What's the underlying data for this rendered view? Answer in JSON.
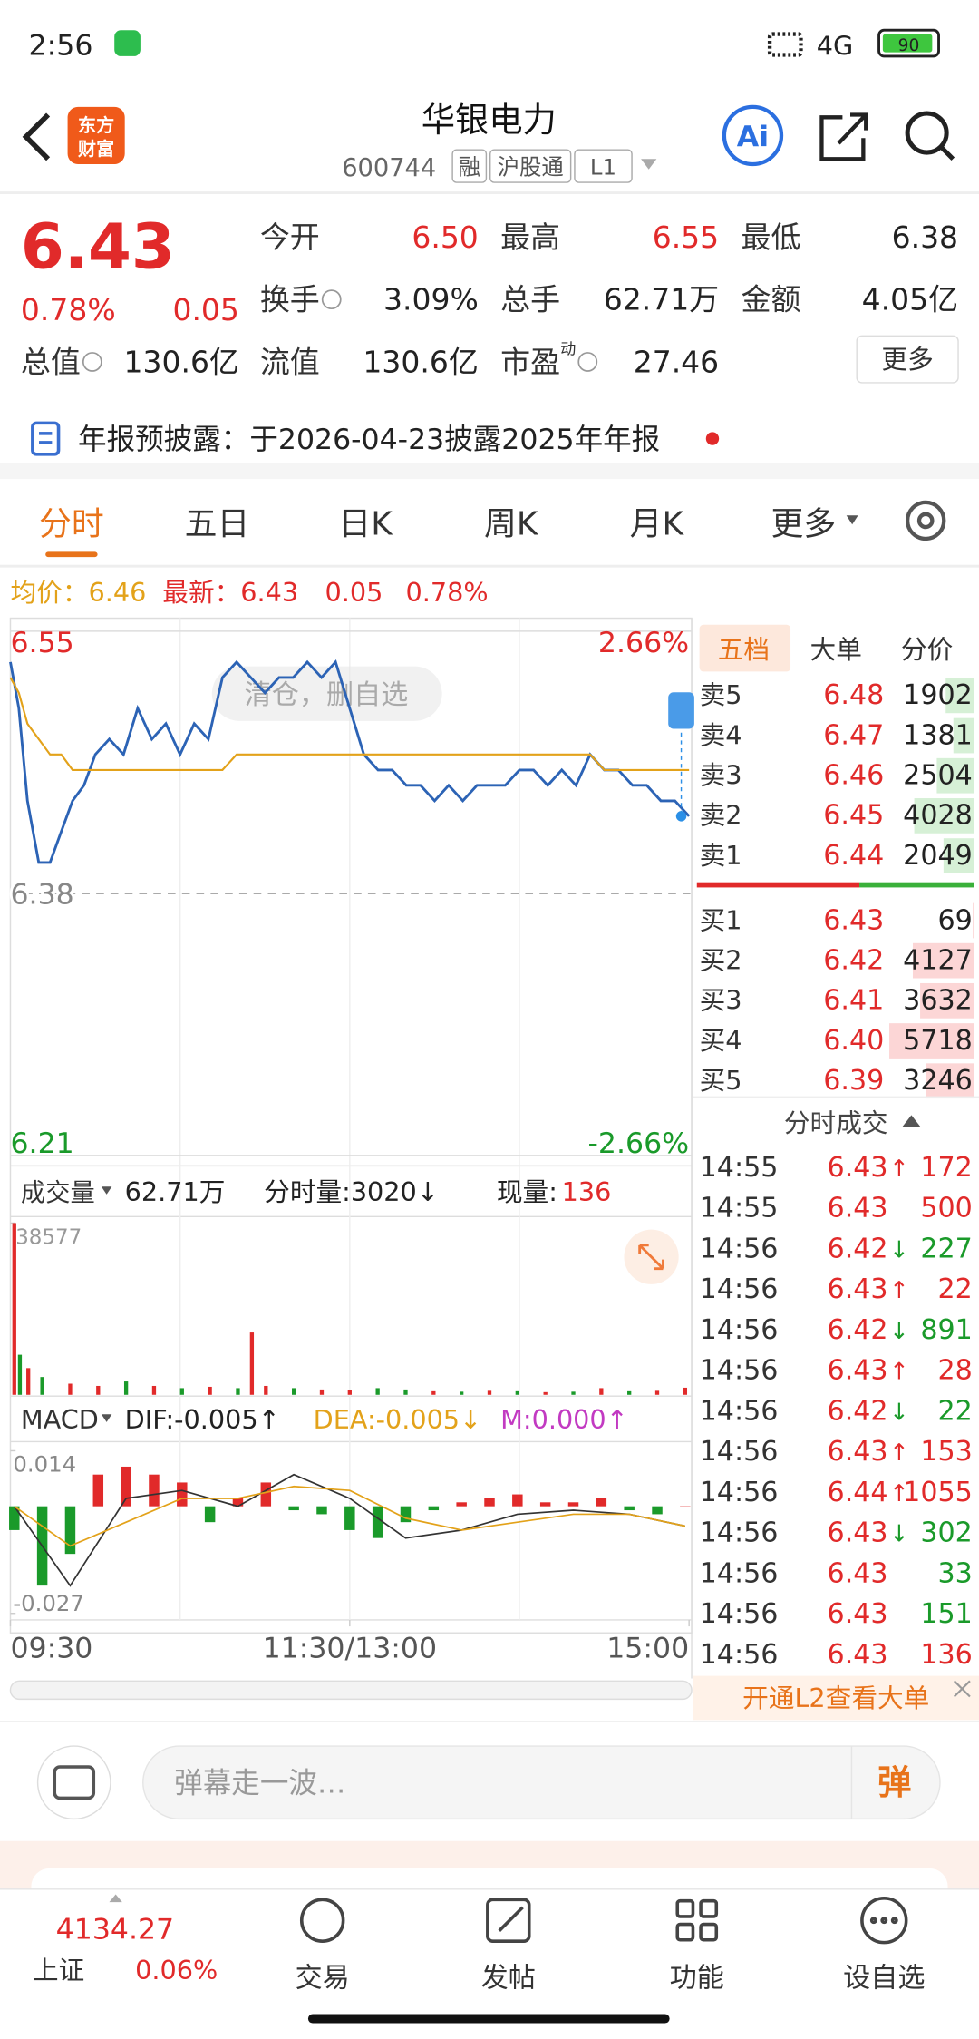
{
  "status_bar": {
    "time": "2:56",
    "network": "4G",
    "battery": "90"
  },
  "header": {
    "logo": [
      "东方",
      "财富"
    ],
    "title": "华银电力",
    "code": "600744",
    "tags": [
      "融",
      "沪股通",
      "L1"
    ]
  },
  "quote": {
    "price": "6.43",
    "change_pct": "0.78%",
    "change": "0.05",
    "fields": [
      {
        "label": "今开",
        "value": "6.50",
        "color": "#e12a2a"
      },
      {
        "label": "最高",
        "value": "6.55",
        "color": "#e12a2a"
      },
      {
        "label": "最低",
        "value": "6.38",
        "color": "#222222"
      },
      {
        "label": "换手",
        "value": "3.09%",
        "info": true
      },
      {
        "label": "总手",
        "value": "62.71万"
      },
      {
        "label": "金额",
        "value": "4.05亿"
      },
      {
        "label": "总值",
        "value": "130.6亿",
        "info": true
      },
      {
        "label": "流值",
        "value": "130.6亿"
      },
      {
        "label": "市盈",
        "sup": "动",
        "value": "27.46",
        "info": true
      }
    ],
    "more": "更多"
  },
  "notice": "年报预披露：于2026-04-23披露2025年年报",
  "tabs": {
    "items": [
      "分时",
      "五日",
      "日K",
      "周K",
      "月K",
      "更多"
    ],
    "active": 0
  },
  "summary": {
    "avg": "均价：6.46",
    "latest": "最新：6.43",
    "change": "0.05",
    "change_pct": "0.78%"
  },
  "watermark": "清仓，删自选",
  "volume_header": {
    "label": "成交量",
    "total": "62.71万",
    "minute": "分时量:3020↓",
    "current_label": "现量:",
    "current": "136"
  },
  "macd_header": {
    "label": "MACD",
    "dif": "DIF:-0.005↑",
    "dea": "DEA:-0.005↓",
    "m": "M:0.000↑"
  },
  "chart_data": [
    {
      "type": "line",
      "xlim": [
        0,
        240
      ],
      "ylim": [
        6.21,
        6.55
      ],
      "yticks": [
        6.21,
        6.38,
        6.55
      ],
      "y2lim": [
        -2.66,
        2.66
      ],
      "y2ticks": [
        {
          "value": -2.66,
          "label": "-2.66%"
        },
        {
          "value": 2.66,
          "label": "2.66%"
        }
      ],
      "xticks": [
        {
          "value": 0,
          "label": "09:30"
        },
        {
          "value": 120,
          "label": "11:30/13:00"
        },
        {
          "value": 240,
          "label": "15:00"
        }
      ],
      "x": [
        0,
        3,
        6,
        10,
        14,
        18,
        22,
        26,
        30,
        35,
        40,
        45,
        50,
        55,
        60,
        65,
        70,
        75,
        80,
        85,
        90,
        95,
        100,
        105,
        110,
        115,
        120,
        125,
        130,
        135,
        140,
        145,
        150,
        155,
        160,
        165,
        170,
        175,
        180,
        185,
        190,
        195,
        200,
        205,
        210,
        215,
        220,
        225,
        230,
        235,
        240
      ],
      "series": [
        {
          "color": "#2c63b5",
          "values": [
            6.53,
            6.5,
            6.44,
            6.4,
            6.4,
            6.42,
            6.44,
            6.45,
            6.47,
            6.48,
            6.47,
            6.5,
            6.48,
            6.49,
            6.47,
            6.49,
            6.48,
            6.52,
            6.53,
            6.52,
            6.51,
            6.52,
            6.52,
            6.53,
            6.52,
            6.53,
            6.5,
            6.47,
            6.46,
            6.46,
            6.45,
            6.45,
            6.44,
            6.45,
            6.44,
            6.45,
            6.45,
            6.45,
            6.46,
            6.46,
            6.45,
            6.46,
            6.45,
            6.47,
            6.46,
            6.46,
            6.45,
            6.45,
            6.44,
            6.44,
            6.43
          ]
        },
        {
          "color": "#e3a21a",
          "values": [
            6.52,
            6.51,
            6.49,
            6.48,
            6.47,
            6.47,
            6.46,
            6.46,
            6.46,
            6.46,
            6.46,
            6.46,
            6.46,
            6.46,
            6.46,
            6.46,
            6.46,
            6.46,
            6.47,
            6.47,
            6.47,
            6.47,
            6.47,
            6.47,
            6.47,
            6.47,
            6.47,
            6.47,
            6.47,
            6.47,
            6.47,
            6.47,
            6.47,
            6.47,
            6.47,
            6.47,
            6.47,
            6.47,
            6.47,
            6.47,
            6.47,
            6.47,
            6.47,
            6.47,
            6.46,
            6.46,
            6.46,
            6.46,
            6.46,
            6.46,
            6.46
          ]
        }
      ]
    },
    {
      "type": "bar",
      "xlim": [
        0,
        240
      ],
      "ylim": [
        0,
        38577
      ],
      "yticks": [
        38577
      ],
      "x": [
        0,
        2,
        5,
        10,
        20,
        30,
        40,
        50,
        60,
        70,
        80,
        85,
        90,
        100,
        110,
        120,
        130,
        140,
        150,
        160,
        170,
        180,
        190,
        200,
        210,
        220,
        230,
        240
      ],
      "values": [
        38577,
        9000,
        6000,
        4000,
        2500,
        2000,
        3000,
        2000,
        1500,
        1800,
        1500,
        14000,
        2000,
        1500,
        1200,
        1000,
        1500,
        1200,
        800,
        700,
        900,
        800,
        600,
        700,
        1500,
        800,
        900,
        1600
      ],
      "up": [
        true,
        false,
        true,
        false,
        true,
        true,
        false,
        true,
        false,
        true,
        false,
        true,
        true,
        false,
        true,
        true,
        false,
        false,
        true,
        false,
        true,
        false,
        true,
        false,
        true,
        false,
        true,
        true
      ]
    },
    {
      "type": "bar",
      "xlim": [
        0,
        240
      ],
      "ylim": [
        -0.027,
        0.014
      ],
      "yticks": [
        -0.027,
        0.014
      ],
      "x": [
        0,
        10,
        20,
        30,
        40,
        50,
        60,
        70,
        80,
        90,
        100,
        110,
        120,
        130,
        140,
        150,
        160,
        170,
        180,
        190,
        200,
        210,
        220,
        230,
        240
      ],
      "values": [
        -0.006,
        -0.02,
        -0.012,
        0.008,
        0.01,
        0.008,
        0.006,
        -0.004,
        0.002,
        0.006,
        -0.001,
        -0.002,
        -0.006,
        -0.008,
        -0.004,
        -0.001,
        0.001,
        0.002,
        0.003,
        0.001,
        0.001,
        0.002,
        -0.001,
        -0.002,
        0.0
      ],
      "lines": {
        "x": [
          0,
          20,
          40,
          60,
          80,
          100,
          120,
          140,
          160,
          180,
          200,
          220,
          240
        ],
        "series": [
          {
            "color": "#333333",
            "values": [
              0,
              -0.02,
              0.002,
              0.004,
              0,
              0.008,
              0.002,
              -0.008,
              -0.006,
              -0.002,
              -0.001,
              -0.002,
              -0.005
            ]
          },
          {
            "color": "#e3a21a",
            "values": [
              0,
              -0.01,
              -0.004,
              0.002,
              0.002,
              0.005,
              0.004,
              -0.003,
              -0.006,
              -0.004,
              -0.002,
              -0.002,
              -0.005
            ]
          }
        ]
      }
    }
  ],
  "order_book": {
    "tabs": [
      "五档",
      "大单",
      "分价"
    ],
    "sell": [
      {
        "label": "卖5",
        "price": "6.48",
        "volume": 1902
      },
      {
        "label": "卖4",
        "price": "6.47",
        "volume": 1381
      },
      {
        "label": "卖3",
        "price": "6.46",
        "volume": 2504
      },
      {
        "label": "卖2",
        "price": "6.45",
        "volume": 4028
      },
      {
        "label": "卖1",
        "price": "6.44",
        "volume": 2049
      }
    ],
    "buy": [
      {
        "label": "买1",
        "price": "6.43",
        "volume": 69
      },
      {
        "label": "买2",
        "price": "6.42",
        "volume": 4127
      },
      {
        "label": "买3",
        "price": "6.41",
        "volume": 3632
      },
      {
        "label": "买4",
        "price": "6.40",
        "volume": 5718
      },
      {
        "label": "买5",
        "price": "6.39",
        "volume": 3246
      }
    ]
  },
  "trades": {
    "title": "分时成交",
    "rows": [
      {
        "time": "14:55",
        "price": "6.43",
        "dir": "↑",
        "volume": "172",
        "color": "red"
      },
      {
        "time": "14:55",
        "price": "6.43",
        "dir": "",
        "volume": "500",
        "color": "red"
      },
      {
        "time": "14:56",
        "price": "6.42",
        "dir": "↓",
        "volume": "227",
        "color": "green"
      },
      {
        "time": "14:56",
        "price": "6.43",
        "dir": "↑",
        "volume": "22",
        "color": "red"
      },
      {
        "time": "14:56",
        "price": "6.42",
        "dir": "↓",
        "volume": "891",
        "color": "green"
      },
      {
        "time": "14:56",
        "price": "6.43",
        "dir": "↑",
        "volume": "28",
        "color": "red"
      },
      {
        "time": "14:56",
        "price": "6.42",
        "dir": "↓",
        "volume": "22",
        "color": "green"
      },
      {
        "time": "14:56",
        "price": "6.43",
        "dir": "↑",
        "volume": "153",
        "color": "red"
      },
      {
        "time": "14:56",
        "price": "6.44",
        "dir": "↑",
        "volume": "1055",
        "color": "red"
      },
      {
        "time": "14:56",
        "price": "6.43",
        "dir": "↓",
        "volume": "302",
        "color": "green"
      },
      {
        "time": "14:56",
        "price": "6.43",
        "dir": "",
        "volume": "33",
        "color": "green"
      },
      {
        "time": "14:56",
        "price": "6.43",
        "dir": "",
        "volume": "151",
        "color": "green"
      },
      {
        "time": "14:56",
        "price": "6.43",
        "dir": "",
        "volume": "136",
        "color": "red"
      }
    ]
  },
  "l2_banner": "开通L2查看大单",
  "comment_bar": {
    "placeholder": "弹幕走一波…",
    "button": "弹"
  },
  "bottom_nav": {
    "index": {
      "value": "4134.27",
      "name": "上证",
      "change": "0.06%"
    },
    "items": [
      "交易",
      "发帖",
      "功能",
      "设自选"
    ]
  }
}
